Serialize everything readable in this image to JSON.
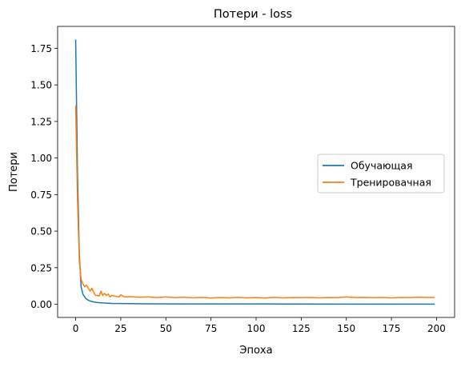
{
  "chart_data": {
    "type": "line",
    "title": "Потери - loss",
    "xlabel": "Эпоха",
    "ylabel": "Потери",
    "xlim": [
      -10,
      210
    ],
    "ylim": [
      -0.09,
      1.9
    ],
    "xticks": [
      0,
      25,
      50,
      75,
      100,
      125,
      150,
      175,
      200
    ],
    "xtick_labels": [
      "0",
      "25",
      "50",
      "75",
      "100",
      "125",
      "150",
      "175",
      "200"
    ],
    "yticks": [
      0.0,
      0.25,
      0.5,
      0.75,
      1.0,
      1.25,
      1.5,
      1.75
    ],
    "ytick_labels": [
      "0.00",
      "0.25",
      "0.50",
      "0.75",
      "1.00",
      "1.25",
      "1.50",
      "1.75"
    ],
    "grid": false,
    "legend_position": "center-right",
    "series": [
      {
        "name": "Обучающая",
        "color": "#1f77b4",
        "points": [
          [
            0,
            1.81
          ],
          [
            1,
            0.9
          ],
          [
            2,
            0.35
          ],
          [
            3,
            0.12
          ],
          [
            4,
            0.07
          ],
          [
            5,
            0.05
          ],
          [
            6,
            0.035
          ],
          [
            7,
            0.028
          ],
          [
            8,
            0.022
          ],
          [
            10,
            0.016
          ],
          [
            12,
            0.012
          ],
          [
            15,
            0.009
          ],
          [
            20,
            0.006
          ],
          [
            25,
            0.005
          ],
          [
            30,
            0.004
          ],
          [
            40,
            0.003
          ],
          [
            60,
            0.002
          ],
          [
            100,
            0.002
          ],
          [
            150,
            0.001
          ],
          [
            199,
            0.001
          ]
        ]
      },
      {
        "name": "Тренировачная",
        "color": "#ff7f0e",
        "points": [
          [
            0,
            1.36
          ],
          [
            1,
            0.72
          ],
          [
            2,
            0.3
          ],
          [
            3,
            0.17
          ],
          [
            4,
            0.14
          ],
          [
            5,
            0.12
          ],
          [
            6,
            0.13
          ],
          [
            7,
            0.11
          ],
          [
            8,
            0.09
          ],
          [
            9,
            0.11
          ],
          [
            10,
            0.08
          ],
          [
            11,
            0.06
          ],
          [
            12,
            0.06
          ],
          [
            13,
            0.055
          ],
          [
            14,
            0.09
          ],
          [
            15,
            0.06
          ],
          [
            16,
            0.075
          ],
          [
            17,
            0.06
          ],
          [
            18,
            0.07
          ],
          [
            19,
            0.05
          ],
          [
            20,
            0.06
          ],
          [
            22,
            0.055
          ],
          [
            24,
            0.05
          ],
          [
            25,
            0.065
          ],
          [
            27,
            0.05
          ],
          [
            30,
            0.052
          ],
          [
            35,
            0.048
          ],
          [
            40,
            0.05
          ],
          [
            45,
            0.046
          ],
          [
            50,
            0.05
          ],
          [
            55,
            0.045
          ],
          [
            60,
            0.048
          ],
          [
            65,
            0.044
          ],
          [
            70,
            0.047
          ],
          [
            75,
            0.043
          ],
          [
            80,
            0.046
          ],
          [
            85,
            0.044
          ],
          [
            90,
            0.047
          ],
          [
            95,
            0.044
          ],
          [
            100,
            0.046
          ],
          [
            105,
            0.043
          ],
          [
            110,
            0.047
          ],
          [
            115,
            0.044
          ],
          [
            120,
            0.046
          ],
          [
            125,
            0.045
          ],
          [
            130,
            0.047
          ],
          [
            135,
            0.044
          ],
          [
            140,
            0.046
          ],
          [
            145,
            0.045
          ],
          [
            150,
            0.05
          ],
          [
            155,
            0.046
          ],
          [
            160,
            0.047
          ],
          [
            165,
            0.045
          ],
          [
            170,
            0.047
          ],
          [
            175,
            0.044
          ],
          [
            180,
            0.047
          ],
          [
            185,
            0.046
          ],
          [
            190,
            0.048
          ],
          [
            195,
            0.047
          ],
          [
            199,
            0.046
          ]
        ]
      }
    ]
  }
}
